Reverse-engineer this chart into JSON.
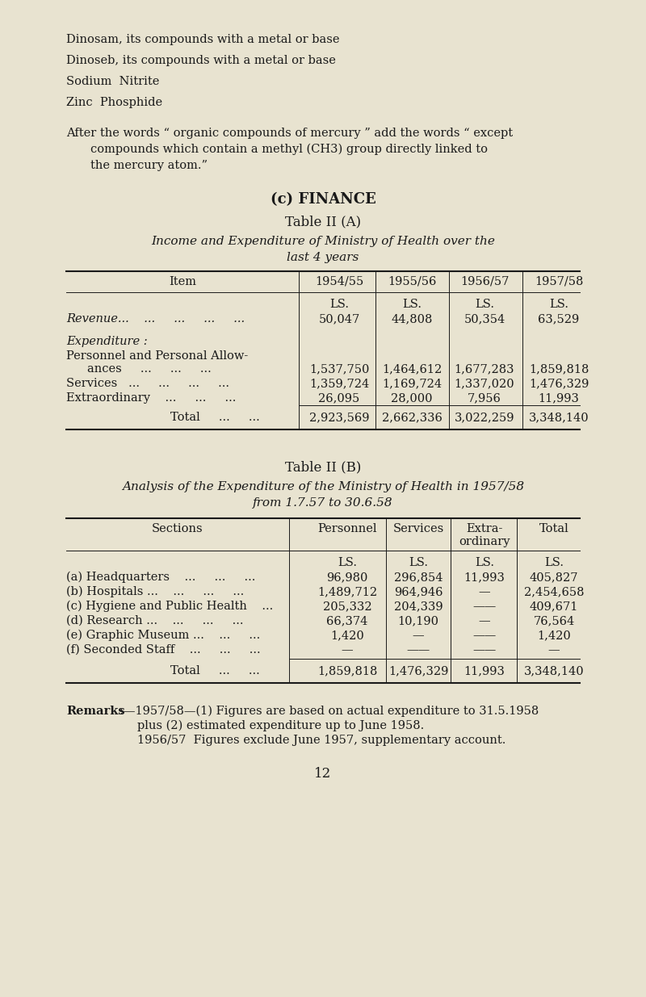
{
  "bg_color": "#e8e3d0",
  "text_color": "#1a1a1a",
  "page_number": "12",
  "intro_lines": [
    "Dinosam, its compounds with a metal or base",
    "Dinoseb, its compounds with a metal or base",
    "Sodium  Nitrite",
    "Zinc  Phosphide"
  ],
  "after_text_line1": "After the words “ organic compounds of mercury ” add the words “ except",
  "after_text_line2": "compounds which contain a methyl (CH3) group directly linked to",
  "after_text_line3": "the mercury atom.”",
  "finance_label": "(c) FINANCE",
  "table_a_title": "Table II (A)",
  "table_a_subtitle": "Income and Expenditure of Ministry of Health over the",
  "table_a_subtitle2": "last 4 years",
  "table_a_revenue": [
    "50,047",
    "44,808",
    "50,354",
    "63,529"
  ],
  "table_a_personnel": [
    "1,537,750",
    "1,464,612",
    "1,677,283",
    "1,859,818"
  ],
  "table_a_services": [
    "1,359,724",
    "1,169,724",
    "1,337,020",
    "1,476,329"
  ],
  "table_a_extra": [
    "26,095",
    "28,000",
    "7,956",
    "11,993"
  ],
  "table_a_total": [
    "2,923,569",
    "2,662,336",
    "3,022,259",
    "3,348,140"
  ],
  "table_b_title": "Table II (B)",
  "table_b_subtitle": "Analysis of the Expenditure of the Ministry of Health in 1957/58",
  "table_b_subtitle2": "from 1.7.57 to 30.6.58",
  "table_b_rows": [
    [
      "(a) Headquarters    ...     ...     ...",
      "96,980",
      "296,854",
      "11,993",
      "405,827"
    ],
    [
      "(b) Hospitals ...    ...     ...     ...",
      "1,489,712",
      "964,946",
      "—",
      "2,454,658"
    ],
    [
      "(c) Hygiene and Public Health    ...",
      "205,332",
      "204,339",
      "——",
      "409,671"
    ],
    [
      "(d) Research ...    ...     ...     ...",
      "66,374",
      "10,190",
      "—",
      "76,564"
    ],
    [
      "(e) Graphic Museum ...    ...     ...",
      "1,420",
      "—",
      "——",
      "1,420"
    ],
    [
      "(f) Seconded Staff    ...     ...     ...",
      "—",
      "——",
      "——",
      "—"
    ]
  ],
  "table_b_total": [
    "1,859,818",
    "1,476,329",
    "11,993",
    "3,348,140"
  ],
  "remarks_text1": ":—1957/58—(1) Figures are based on actual expenditure to 31.5.1958",
  "remarks_text2": "plus (2) estimated expenditure up to June 1958.",
  "remarks_text3": "1956/57  Figures exclude June 1957, supplementary account."
}
